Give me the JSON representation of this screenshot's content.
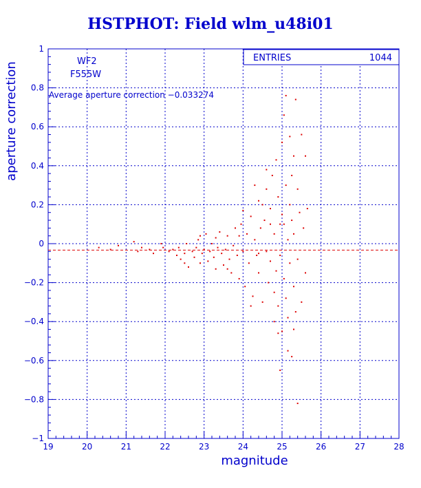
{
  "title": "HSTPHOT: Field wlm_u48i01",
  "colors": {
    "axis": "#0000cc",
    "data": "#dd0000",
    "background": "#ffffff"
  },
  "chart_data": {
    "type": "scatter",
    "title": "HSTPHOT: Field wlm_u48i01",
    "xlabel": "magnitude",
    "ylabel": "aperture correction",
    "xlim": [
      19,
      28
    ],
    "ylim": [
      -1,
      1
    ],
    "x_ticks": [
      19,
      20,
      21,
      22,
      23,
      24,
      25,
      26,
      27,
      28
    ],
    "y_ticks": [
      -1,
      -0.8,
      -0.6,
      -0.4,
      -0.2,
      0,
      0.2,
      0.4,
      0.6,
      0.8,
      1
    ],
    "x_tick_labels": [
      "19",
      "20",
      "21",
      "22",
      "23",
      "24",
      "25",
      "26",
      "27",
      "28"
    ],
    "y_tick_labels": [
      "−1",
      "−0.8",
      "−0.6",
      "−0.4",
      "−0.2",
      "0",
      "0.2",
      "0.4",
      "0.6",
      "0.8",
      "1"
    ],
    "grid": true,
    "annotations": {
      "chip": "WF2",
      "filter": "F555W",
      "average": "Average aperture correction −0.033274"
    },
    "stats_box": {
      "label": "ENTRIES",
      "value": "1044"
    },
    "reference_line": {
      "y": -0.033274,
      "style": "dashed"
    },
    "series": [
      {
        "points": [
          [
            20.3,
            -0.02
          ],
          [
            20.6,
            -0.03
          ],
          [
            20.8,
            -0.01
          ],
          [
            21.2,
            0.01
          ],
          [
            21.3,
            -0.04
          ],
          [
            21.4,
            -0.02
          ],
          [
            21.6,
            -0.03
          ],
          [
            21.7,
            -0.05
          ],
          [
            21.9,
            0.0
          ],
          [
            21.95,
            -0.02
          ],
          [
            22.1,
            -0.04
          ],
          [
            22.2,
            -0.03
          ],
          [
            22.3,
            -0.06
          ],
          [
            22.35,
            -0.02
          ],
          [
            22.4,
            -0.08
          ],
          [
            22.5,
            -0.05
          ],
          [
            22.55,
            0.0
          ],
          [
            22.6,
            -0.12
          ],
          [
            22.7,
            -0.04
          ],
          [
            22.75,
            -0.07
          ],
          [
            22.8,
            -0.02
          ],
          [
            22.85,
            0.02
          ],
          [
            22.9,
            -0.1
          ],
          [
            22.95,
            -0.05
          ],
          [
            23.0,
            -0.03
          ],
          [
            23.05,
            0.05
          ],
          [
            23.1,
            -0.09
          ],
          [
            23.15,
            -0.04
          ],
          [
            23.2,
            0.0
          ],
          [
            23.25,
            -0.07
          ],
          [
            23.3,
            -0.13
          ],
          [
            23.35,
            -0.02
          ],
          [
            23.4,
            0.06
          ],
          [
            23.45,
            -0.05
          ],
          [
            23.5,
            -0.11
          ],
          [
            23.55,
            -0.03
          ],
          [
            23.6,
            0.04
          ],
          [
            23.65,
            -0.08
          ],
          [
            23.7,
            -0.15
          ],
          [
            23.75,
            -0.01
          ],
          [
            23.8,
            0.08
          ],
          [
            23.85,
            -0.06
          ],
          [
            23.9,
            -0.18
          ],
          [
            23.95,
            0.1
          ],
          [
            24.0,
            -0.04
          ],
          [
            24.0,
            0.17
          ],
          [
            24.05,
            -0.22
          ],
          [
            24.1,
            0.05
          ],
          [
            24.15,
            -0.1
          ],
          [
            24.2,
            0.14
          ],
          [
            24.25,
            -0.27
          ],
          [
            24.3,
            0.02
          ],
          [
            24.35,
            -0.06
          ],
          [
            24.4,
            0.22
          ],
          [
            24.4,
            -0.15
          ],
          [
            24.45,
            0.08
          ],
          [
            24.5,
            -0.3
          ],
          [
            24.55,
            0.12
          ],
          [
            24.6,
            -0.04
          ],
          [
            24.6,
            0.28
          ],
          [
            24.65,
            -0.2
          ],
          [
            24.7,
            0.18
          ],
          [
            24.7,
            -0.09
          ],
          [
            24.75,
            0.35
          ],
          [
            24.8,
            -0.25
          ],
          [
            24.8,
            0.05
          ],
          [
            24.85,
            0.43
          ],
          [
            24.85,
            -0.14
          ],
          [
            24.9,
            0.24
          ],
          [
            24.9,
            -0.32
          ],
          [
            24.95,
            0.1
          ],
          [
            24.95,
            -0.06
          ],
          [
            25.0,
            0.52
          ],
          [
            25.0,
            -0.45
          ],
          [
            25.0,
            0.15
          ],
          [
            25.05,
            -0.18
          ],
          [
            25.05,
            0.66
          ],
          [
            25.1,
            0.3
          ],
          [
            25.1,
            -0.28
          ],
          [
            25.1,
            0.76
          ],
          [
            25.15,
            0.02
          ],
          [
            25.15,
            -0.38
          ],
          [
            25.2,
            0.55
          ],
          [
            25.2,
            -0.1
          ],
          [
            25.2,
            0.2
          ],
          [
            25.25,
            -0.58
          ],
          [
            25.25,
            0.12
          ],
          [
            25.3,
            0.45
          ],
          [
            25.3,
            -0.22
          ],
          [
            25.3,
            0.05
          ],
          [
            25.35,
            0.74
          ],
          [
            25.35,
            -0.35
          ],
          [
            25.4,
            0.28
          ],
          [
            25.4,
            -0.08
          ],
          [
            25.4,
            -0.82
          ],
          [
            25.45,
            0.16
          ],
          [
            25.5,
            0.56
          ],
          [
            25.5,
            -0.3
          ],
          [
            25.55,
            0.08
          ],
          [
            25.6,
            0.45
          ],
          [
            25.6,
            -0.15
          ],
          [
            25.65,
            0.18
          ],
          [
            24.2,
            -0.32
          ],
          [
            23.9,
            0.04
          ],
          [
            23.6,
            -0.13
          ],
          [
            23.3,
            0.03
          ],
          [
            22.9,
            0.04
          ],
          [
            22.5,
            -0.1
          ],
          [
            24.6,
            0.38
          ],
          [
            24.9,
            -0.46
          ],
          [
            25.15,
            -0.55
          ],
          [
            24.95,
            -0.65
          ],
          [
            25.05,
            0.1
          ],
          [
            24.5,
            0.2
          ],
          [
            24.3,
            0.3
          ],
          [
            24.8,
            -0.4
          ],
          [
            25.25,
            0.35
          ],
          [
            25.3,
            -0.44
          ],
          [
            24.7,
            0.1
          ],
          [
            24.4,
            -0.05
          ]
        ]
      }
    ]
  }
}
